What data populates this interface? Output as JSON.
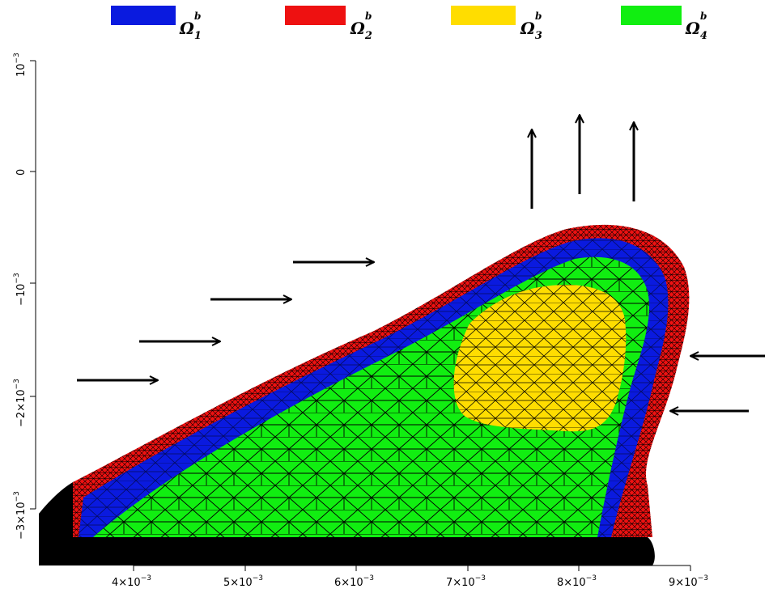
{
  "legend": [
    {
      "symbol": "Ω",
      "sup": "b",
      "sub": "1",
      "color": "#0a1adf"
    },
    {
      "symbol": "Ω",
      "sup": "b",
      "sub": "2",
      "color": "#ee1111"
    },
    {
      "symbol": "Ω",
      "sup": "b",
      "sub": "3",
      "color": "#ffdd00"
    },
    {
      "symbol": "Ω",
      "sup": "b",
      "sub": "4",
      "color": "#11ee11"
    }
  ],
  "x_ticks": [
    {
      "base": "4×10",
      "exp": "−3"
    },
    {
      "base": "5×10",
      "exp": "−3"
    },
    {
      "base": "6×10",
      "exp": "−3"
    },
    {
      "base": "7×10",
      "exp": "−3"
    },
    {
      "base": "8×10",
      "exp": "−3"
    },
    {
      "base": "9×10",
      "exp": "−3"
    }
  ],
  "y_ticks": [
    {
      "base": "10",
      "exp": "−3"
    },
    {
      "base": "0",
      "exp": ""
    },
    {
      "base": "−10",
      "exp": "−3"
    },
    {
      "base": "−2×10",
      "exp": "−3"
    },
    {
      "base": "−3×10",
      "exp": "−3"
    }
  ],
  "colors": {
    "outer_layer": "#ee1111",
    "second_layer": "#0a1adf",
    "core": "#11ee11",
    "inner_region": "#ffdd00",
    "substrate": "#000000",
    "mesh": "#000000"
  }
}
